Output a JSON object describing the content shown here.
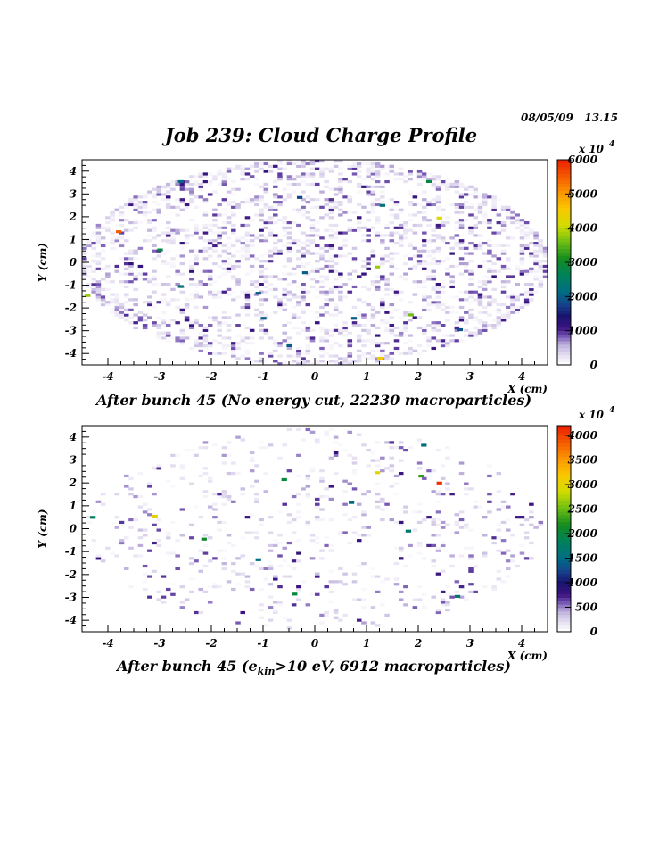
{
  "header": {
    "date": "08/05/09",
    "time": "13.15",
    "title": "Job 239: Cloud Charge Profile"
  },
  "chart_data": [
    {
      "type": "heatmap",
      "title": "",
      "caption": "After bunch 45 (No energy cut, 22230 macroparticles)",
      "xlabel": "X (cm)",
      "ylabel": "Y (cm)",
      "xlim": [
        -4.5,
        4.5
      ],
      "ylim": [
        -4.5,
        4.5
      ],
      "x_ticks": [
        "-4",
        "-3",
        "-2",
        "-1",
        "0",
        "1",
        "2",
        "3",
        "4"
      ],
      "y_ticks": [
        "-4",
        "-3",
        "-2",
        "-1",
        "0",
        "1",
        "2",
        "3",
        "4"
      ],
      "colorbar": {
        "multiplier": "x 10",
        "exponent": "4",
        "max": 6000,
        "ticks": [
          "0",
          "1000",
          "2000",
          "3000",
          "4000",
          "5000",
          "6000"
        ]
      },
      "ellipse_extent": {
        "x_radius": 4.5,
        "y_radius": 4.5
      },
      "distribution": "density higher near boundary, scattered cells across ellipse",
      "hot_cells": [
        {
          "x": -3.8,
          "y": 1.35,
          "value": 5500
        },
        {
          "x": 2.4,
          "y": 1.95,
          "value": 4200
        },
        {
          "x": 1.25,
          "y": -4.2,
          "value": 4500
        },
        {
          "x": -4.4,
          "y": -1.45,
          "value": 3800
        },
        {
          "x": 1.2,
          "y": -0.2,
          "value": 3800
        },
        {
          "x": 1.85,
          "y": -2.3,
          "value": 3600
        },
        {
          "x": -3.0,
          "y": 0.55,
          "value": 2800
        },
        {
          "x": 2.2,
          "y": 3.55,
          "value": 2800
        },
        {
          "x": -2.6,
          "y": -1.05,
          "value": 2300
        },
        {
          "x": 1.3,
          "y": 2.5,
          "value": 2300
        },
        {
          "x": -1.1,
          "y": -1.35,
          "value": 2000
        },
        {
          "x": -0.2,
          "y": -0.45,
          "value": 2000
        },
        {
          "x": 0.75,
          "y": -2.45,
          "value": 2000
        },
        {
          "x": -0.5,
          "y": -3.65,
          "value": 2000
        },
        {
          "x": -2.6,
          "y": 3.55,
          "value": 2100
        },
        {
          "x": 2.8,
          "y": -2.95,
          "value": 1900
        },
        {
          "x": -1.0,
          "y": -2.45,
          "value": 2000
        },
        {
          "x": -0.3,
          "y": 2.85,
          "value": 1800
        }
      ]
    },
    {
      "type": "heatmap",
      "title": "",
      "caption_prefix": "After bunch 45 (e",
      "caption_sub": "kin",
      "caption_suffix": ">10 eV, 6912 macroparticles)",
      "xlabel": "X (cm)",
      "ylabel": "Y (cm)",
      "xlim": [
        -4.5,
        4.5
      ],
      "ylim": [
        -4.5,
        4.5
      ],
      "x_ticks": [
        "-4",
        "-3",
        "-2",
        "-1",
        "0",
        "1",
        "2",
        "3",
        "4"
      ],
      "y_ticks": [
        "-4",
        "-3",
        "-2",
        "-1",
        "0",
        "1",
        "2",
        "3",
        "4"
      ],
      "colorbar": {
        "multiplier": "x 10",
        "exponent": "4",
        "max": 4200,
        "ticks": [
          "0",
          "500",
          "1000",
          "1500",
          "2000",
          "2500",
          "3000",
          "3500",
          "4000"
        ]
      },
      "ellipse_extent": {
        "x_radius": 4.4,
        "y_radius": 4.4
      },
      "distribution": "sparse scattered cells, mostly low values",
      "hot_cells": [
        {
          "x": 2.4,
          "y": 2.0,
          "value": 4100
        },
        {
          "x": -3.1,
          "y": 0.55,
          "value": 3000
        },
        {
          "x": 1.2,
          "y": 2.45,
          "value": 3000
        },
        {
          "x": 2.05,
          "y": 2.3,
          "value": 2300
        },
        {
          "x": -0.6,
          "y": 2.15,
          "value": 2000
        },
        {
          "x": -2.15,
          "y": -0.45,
          "value": 2100
        },
        {
          "x": -0.4,
          "y": -2.85,
          "value": 2000
        },
        {
          "x": -4.3,
          "y": 0.5,
          "value": 1800
        },
        {
          "x": 2.75,
          "y": -2.95,
          "value": 1700
        },
        {
          "x": 1.8,
          "y": -0.1,
          "value": 1700
        },
        {
          "x": 0.7,
          "y": 1.15,
          "value": 1500
        },
        {
          "x": -1.1,
          "y": -1.35,
          "value": 1500
        },
        {
          "x": 2.1,
          "y": 3.65,
          "value": 1500
        }
      ]
    }
  ]
}
